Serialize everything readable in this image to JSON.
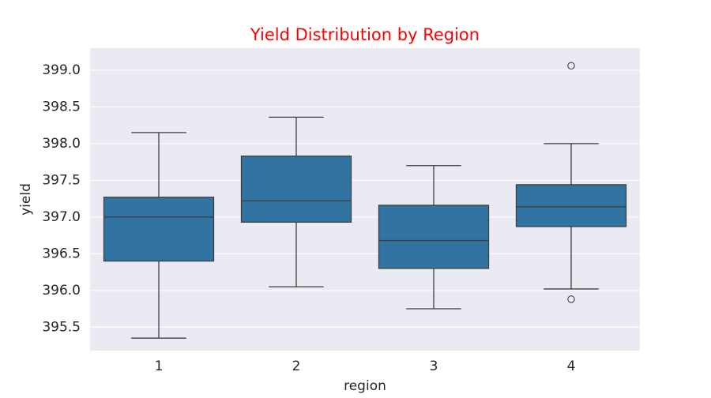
{
  "chart_data": {
    "type": "box",
    "title": "Yield Distribution by Region",
    "xlabel": "region",
    "ylabel": "yield",
    "categories": [
      "1",
      "2",
      "3",
      "4"
    ],
    "ylim": [
      395.18,
      399.3
    ],
    "yticks": [
      395.5,
      396.0,
      396.5,
      397.0,
      397.5,
      398.0,
      398.5,
      399.0
    ],
    "ytick_labels": [
      "395.5",
      "396.0",
      "396.5",
      "397.0",
      "397.5",
      "398.0",
      "398.5",
      "399.0"
    ],
    "grid": true,
    "colors": {
      "box_fill": "#3274a1",
      "box_edge": "#3f3f3f",
      "plot_background": "#eaeaf2",
      "grid": "#ffffff",
      "title": "#ff0000",
      "text": "#262626"
    },
    "boxes": [
      {
        "category": "1",
        "whisker_low": 395.35,
        "q1": 396.4,
        "median": 397.0,
        "q3": 397.27,
        "whisker_high": 398.15,
        "outliers": []
      },
      {
        "category": "2",
        "whisker_low": 396.05,
        "q1": 396.93,
        "median": 397.22,
        "q3": 397.83,
        "whisker_high": 398.36,
        "outliers": []
      },
      {
        "category": "3",
        "whisker_low": 395.75,
        "q1": 396.3,
        "median": 396.68,
        "q3": 397.16,
        "whisker_high": 397.7,
        "outliers": []
      },
      {
        "category": "4",
        "whisker_low": 396.02,
        "q1": 396.87,
        "median": 397.14,
        "q3": 397.44,
        "whisker_high": 398.0,
        "outliers": [
          395.88,
          399.06
        ]
      }
    ]
  }
}
